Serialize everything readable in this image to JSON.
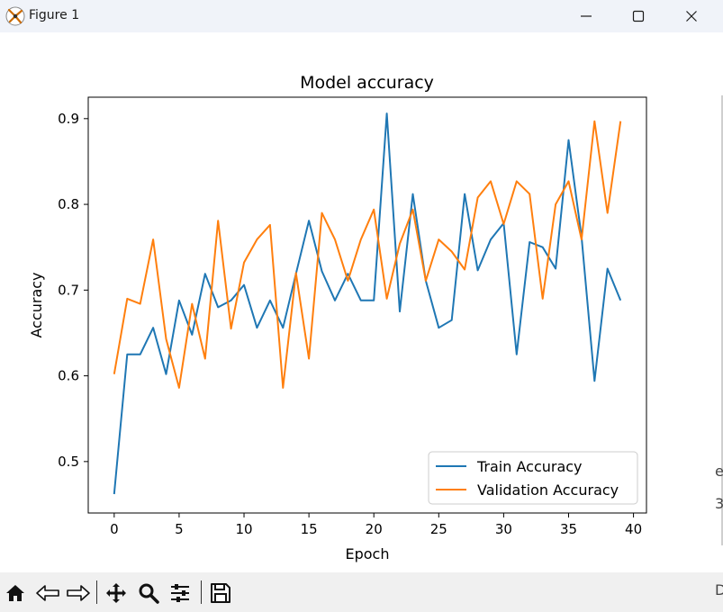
{
  "window": {
    "title": "Figure 1"
  },
  "toolbar": {
    "tools": [
      "home-icon",
      "back-icon",
      "forward-icon",
      "pan-icon",
      "zoom-icon",
      "configure-subplots-icon",
      "save-icon"
    ]
  },
  "edge_glyphs": [
    "e",
    "3",
    "D"
  ],
  "chart_data": {
    "type": "line",
    "title": "Model accuracy",
    "xlabel": "Epoch",
    "ylabel": "Accuracy",
    "xlim": [
      -2.0,
      41.0
    ],
    "ylim": [
      0.44,
      0.925
    ],
    "xticks": [
      0,
      5,
      10,
      15,
      20,
      25,
      30,
      35,
      40
    ],
    "yticks": [
      0.5,
      0.6,
      0.7,
      0.8,
      0.9
    ],
    "ytick_labels": [
      "0.5",
      "0.6",
      "0.7",
      "0.8",
      "0.9"
    ],
    "grid": false,
    "legend_position": "lower right",
    "x": [
      0,
      1,
      2,
      3,
      4,
      5,
      6,
      7,
      8,
      9,
      10,
      11,
      12,
      13,
      14,
      15,
      16,
      17,
      18,
      19,
      20,
      21,
      22,
      23,
      24,
      25,
      26,
      27,
      28,
      29,
      30,
      31,
      32,
      33,
      34,
      35,
      36,
      37,
      38,
      39
    ],
    "series": [
      {
        "name": "Train Accuracy",
        "color": "#1f77b4",
        "values": [
          0.462,
          0.625,
          0.625,
          0.656,
          0.602,
          0.688,
          0.648,
          0.719,
          0.68,
          0.688,
          0.706,
          0.656,
          0.688,
          0.656,
          0.719,
          0.781,
          0.722,
          0.688,
          0.719,
          0.688,
          0.688,
          0.906,
          0.675,
          0.812,
          0.711,
          0.656,
          0.665,
          0.812,
          0.723,
          0.759,
          0.778,
          0.625,
          0.756,
          0.75,
          0.725,
          0.875,
          0.762,
          0.594,
          0.725,
          0.688
        ]
      },
      {
        "name": "Validation Accuracy",
        "color": "#ff7f0e",
        "values": [
          0.602,
          0.69,
          0.684,
          0.759,
          0.643,
          0.586,
          0.684,
          0.62,
          0.781,
          0.655,
          0.732,
          0.759,
          0.776,
          0.586,
          0.72,
          0.62,
          0.79,
          0.759,
          0.711,
          0.759,
          0.794,
          0.69,
          0.754,
          0.794,
          0.711,
          0.759,
          0.745,
          0.724,
          0.808,
          0.827,
          0.777,
          0.827,
          0.812,
          0.69,
          0.8,
          0.827,
          0.759,
          0.897,
          0.79,
          0.897
        ]
      }
    ]
  }
}
